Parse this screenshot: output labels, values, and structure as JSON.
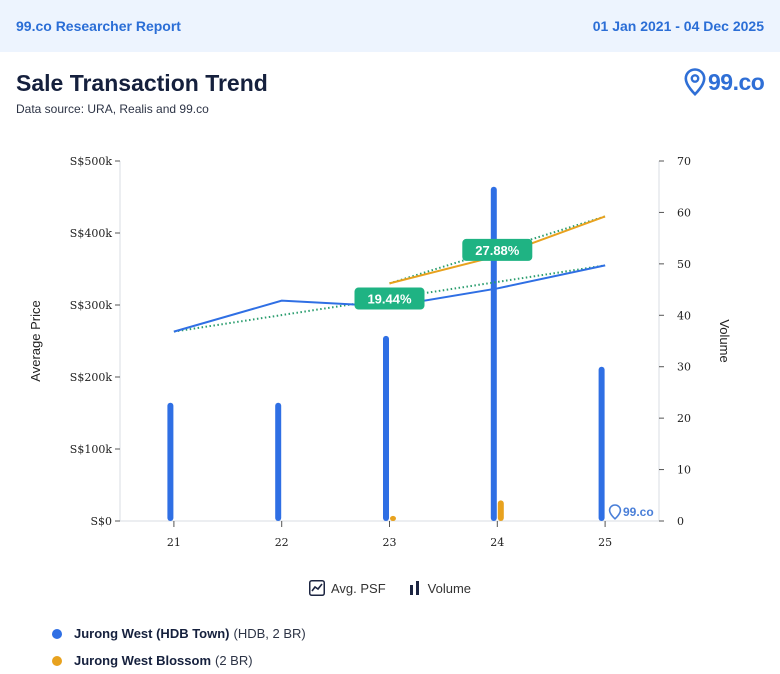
{
  "header": {
    "report_title": "99.co Researcher Report",
    "date_range": "01 Jan 2021 - 04 Dec 2025"
  },
  "chart_title": "Sale Transaction Trend",
  "data_source": "Data source: URA, Realis and 99.co",
  "logo_text": "99.co",
  "watermark_text": "99.co",
  "legend_toggles": {
    "avg_psf": "Avg. PSF",
    "volume": "Volume"
  },
  "series_legend": [
    {
      "name": "Jurong West (HDB Town)",
      "detail": "(HDB, 2 BR)",
      "color": "#2f6fe4"
    },
    {
      "name": "Jurong West Blossom",
      "detail": "(2 BR)",
      "color": "#e8a21e"
    }
  ],
  "colors": {
    "primary": "#2f6fe4",
    "secondary": "#e8a21e",
    "badge": "#1fb383",
    "trend_dotted": "#2a9d6e"
  },
  "chart_data": {
    "type": "bar",
    "categories": [
      "21",
      "22",
      "23",
      "24",
      "25"
    ],
    "ylabel": "Average Price",
    "y2label": "Volume",
    "ylim": [
      0,
      500000
    ],
    "y2lim": [
      0,
      70
    ],
    "y_ticks": [
      "S$0",
      "S$100k",
      "S$200k",
      "S$300k",
      "S$400k",
      "S$500k"
    ],
    "y2_ticks": [
      "0",
      "10",
      "20",
      "30",
      "40",
      "50",
      "60",
      "70"
    ],
    "line_series": [
      {
        "name": "Jurong West (HDB Town)",
        "values": [
          263000,
          306000,
          298000,
          323000,
          355000
        ]
      },
      {
        "name": "Jurong West Blossom",
        "values": [
          null,
          null,
          330000,
          368000,
          423000
        ]
      }
    ],
    "bar_series": [
      {
        "name": "Jurong West (HDB Town)",
        "values": [
          23,
          23,
          36,
          65,
          30
        ]
      },
      {
        "name": "Jurong West Blossom",
        "values": [
          0,
          0,
          1,
          4,
          0
        ]
      }
    ],
    "trend_badges": [
      {
        "label": "27.88%",
        "series": "Jurong West Blossom"
      },
      {
        "label": "19.44%",
        "series": "Jurong West (HDB Town)"
      }
    ]
  }
}
